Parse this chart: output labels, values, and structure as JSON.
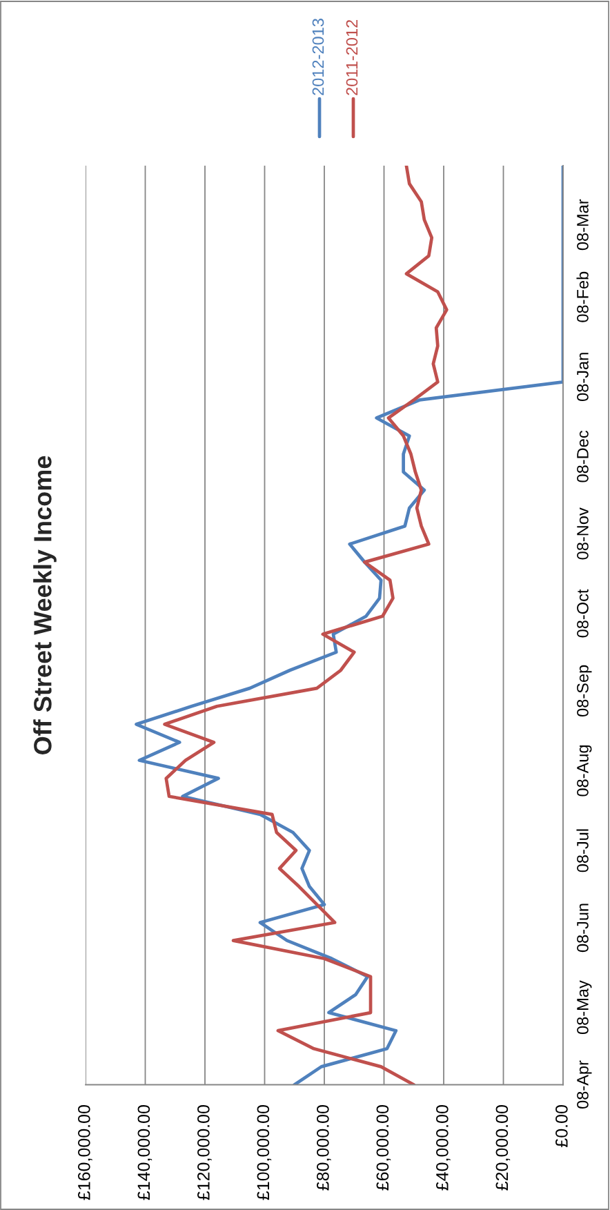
{
  "chart_data": {
    "type": "line",
    "orientation": "horizontal",
    "title": "Off Street Weekly Income",
    "x": [
      "2012-04-08",
      "2012-04-15",
      "2012-04-22",
      "2012-04-29",
      "2012-05-06",
      "2012-05-13",
      "2012-05-20",
      "2012-05-27",
      "2012-06-03",
      "2012-06-10",
      "2012-06-17",
      "2012-06-24",
      "2012-07-01",
      "2012-07-08",
      "2012-07-15",
      "2012-07-22",
      "2012-07-29",
      "2012-08-05",
      "2012-08-12",
      "2012-08-19",
      "2012-08-26",
      "2012-09-02",
      "2012-09-09",
      "2012-09-16",
      "2012-09-23",
      "2012-09-30",
      "2012-10-07",
      "2012-10-14",
      "2012-10-21",
      "2012-10-28",
      "2012-11-04",
      "2012-11-11",
      "2012-11-18",
      "2012-11-25",
      "2012-12-02",
      "2012-12-09",
      "2012-12-16",
      "2012-12-23",
      "2012-12-30",
      "2013-01-06",
      "2013-01-13",
      "2013-01-20",
      "2013-01-27",
      "2013-02-03",
      "2013-02-10",
      "2013-02-17",
      "2013-02-24",
      "2013-03-03",
      "2013-03-10",
      "2013-03-17",
      "2013-03-24",
      "2013-03-31"
    ],
    "series": [
      {
        "name": "2012-2013",
        "color": "#4f81bd",
        "values": [
          90000,
          81000,
          59000,
          56000,
          78500,
          69500,
          65500,
          77500,
          92500,
          101500,
          80000,
          85000,
          87500,
          85000,
          90500,
          101500,
          127500,
          115500,
          142000,
          128500,
          143000,
          124500,
          105000,
          91500,
          76000,
          77000,
          66000,
          61500,
          61000,
          66500,
          71500,
          53000,
          51500,
          46500,
          53500,
          53500,
          51500,
          62500,
          48000,
          0,
          0,
          0,
          0,
          0,
          0,
          0,
          0,
          0,
          0,
          0,
          0,
          0
        ]
      },
      {
        "name": "2011-2012",
        "color": "#c0504d",
        "values": [
          50000,
          61000,
          83500,
          95500,
          64500,
          64500,
          64500,
          80000,
          110500,
          76500,
          82500,
          88500,
          95000,
          89500,
          96000,
          97500,
          132000,
          133000,
          126500,
          117000,
          133500,
          116000,
          82500,
          74500,
          70000,
          80500,
          60500,
          57000,
          58000,
          66500,
          45000,
          47500,
          49000,
          47500,
          49500,
          51000,
          53500,
          58500,
          50000,
          42000,
          43500,
          42000,
          42500,
          39000,
          42000,
          52500,
          45000,
          44000,
          46500,
          47500,
          51500,
          52500
        ]
      }
    ],
    "xlim": [
      160000,
      0
    ],
    "xticks": [
      {
        "value": 160000,
        "label": "£160,000.00"
      },
      {
        "value": 140000,
        "label": "£140,000.00"
      },
      {
        "value": 120000,
        "label": "£120,000.00"
      },
      {
        "value": 100000,
        "label": "£100,000.00"
      },
      {
        "value": 80000,
        "label": "£80,000.00"
      },
      {
        "value": 60000,
        "label": "£60,000.00"
      },
      {
        "value": 40000,
        "label": "£40,000.00"
      },
      {
        "value": 20000,
        "label": "£20,000.00"
      },
      {
        "value": 0,
        "label": "£0.00"
      }
    ],
    "ylim": [
      "2012-04-08",
      "2013-03-31"
    ],
    "yticks": [
      {
        "value": "2012-04-08",
        "label": "08-Apr"
      },
      {
        "value": "2012-05-08",
        "label": "08-May"
      },
      {
        "value": "2012-06-08",
        "label": "08-Jun"
      },
      {
        "value": "2012-07-08",
        "label": "08-Jul"
      },
      {
        "value": "2012-08-08",
        "label": "08-Aug"
      },
      {
        "value": "2012-09-08",
        "label": "08-Sep"
      },
      {
        "value": "2012-10-08",
        "label": "08-Oct"
      },
      {
        "value": "2012-11-08",
        "label": "08-Nov"
      },
      {
        "value": "2012-12-08",
        "label": "08-Dec"
      },
      {
        "value": "2013-01-08",
        "label": "08-Jan"
      },
      {
        "value": "2013-02-08",
        "label": "08-Feb"
      },
      {
        "value": "2013-03-08",
        "label": "08-Mar"
      }
    ],
    "grid": "x",
    "legend": "top right",
    "marker": "none",
    "line_style": "solid"
  }
}
